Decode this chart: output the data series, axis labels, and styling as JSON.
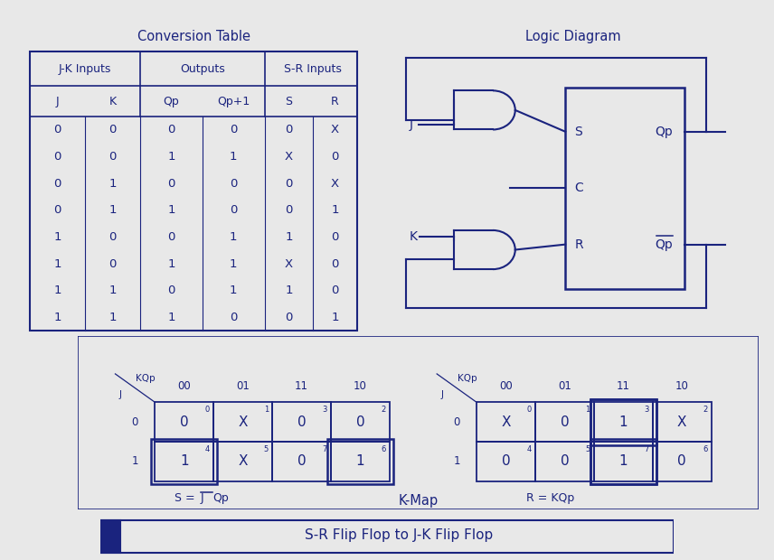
{
  "bg_color": "#e8e8e8",
  "panel_bg": "#ffffff",
  "line_color": "#1a237e",
  "text_color": "#1a237e",
  "title": "S-R Flip Flop to J-K Flip Flop",
  "conv_table_title": "Conversion Table",
  "logic_diagram_title": "Logic Diagram",
  "kmap_title": "K-Map",
  "table_sub_headers": [
    "J",
    "K",
    "Qp",
    "Qp+1",
    "S",
    "R"
  ],
  "table_data": [
    [
      "0",
      "0",
      "0",
      "0",
      "0",
      "X"
    ],
    [
      "0",
      "0",
      "1",
      "1",
      "X",
      "0"
    ],
    [
      "0",
      "1",
      "0",
      "0",
      "0",
      "X"
    ],
    [
      "0",
      "1",
      "1",
      "0",
      "0",
      "1"
    ],
    [
      "1",
      "0",
      "0",
      "1",
      "1",
      "0"
    ],
    [
      "1",
      "0",
      "1",
      "1",
      "X",
      "0"
    ],
    [
      "1",
      "1",
      "0",
      "1",
      "1",
      "0"
    ],
    [
      "1",
      "1",
      "1",
      "0",
      "0",
      "1"
    ]
  ],
  "kmap_s_cells": [
    {
      "row": 0,
      "col": 0,
      "val": "0",
      "idx": "0"
    },
    {
      "row": 0,
      "col": 1,
      "val": "X",
      "idx": "1"
    },
    {
      "row": 0,
      "col": 2,
      "val": "0",
      "idx": "3"
    },
    {
      "row": 0,
      "col": 3,
      "val": "0",
      "idx": "2"
    },
    {
      "row": 1,
      "col": 0,
      "val": "1",
      "idx": "4"
    },
    {
      "row": 1,
      "col": 1,
      "val": "X",
      "idx": "5"
    },
    {
      "row": 1,
      "col": 2,
      "val": "0",
      "idx": "7"
    },
    {
      "row": 1,
      "col": 3,
      "val": "1",
      "idx": "6"
    }
  ],
  "kmap_r_cells": [
    {
      "row": 0,
      "col": 0,
      "val": "X",
      "idx": "0"
    },
    {
      "row": 0,
      "col": 1,
      "val": "0",
      "idx": "1"
    },
    {
      "row": 0,
      "col": 2,
      "val": "1",
      "idx": "3"
    },
    {
      "row": 0,
      "col": 3,
      "val": "X",
      "idx": "2"
    },
    {
      "row": 1,
      "col": 0,
      "val": "0",
      "idx": "4"
    },
    {
      "row": 1,
      "col": 1,
      "val": "0",
      "idx": "5"
    },
    {
      "row": 1,
      "col": 2,
      "val": "1",
      "idx": "7"
    },
    {
      "row": 1,
      "col": 3,
      "val": "0",
      "idx": "6"
    }
  ],
  "kmap_col_labels": [
    "00",
    "01",
    "11",
    "10"
  ],
  "kmap_row_labels": [
    "0",
    "1"
  ]
}
